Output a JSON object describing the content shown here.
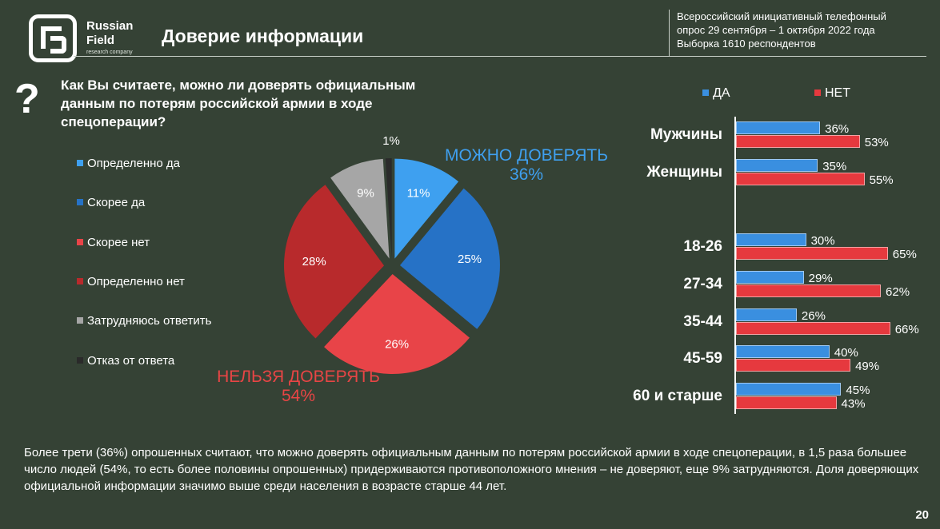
{
  "brand": {
    "line1": "Russian",
    "line2": "Field",
    "sub": "research company"
  },
  "header": {
    "title": "Доверие информации"
  },
  "survey": {
    "line1": "Всероссийский инициативный телефонный",
    "line2": "опрос 29 сентября – 1 октября 2022 года",
    "line3": "Выборка 1610 респондентов"
  },
  "question": {
    "mark": "?",
    "text": "Как Вы считаете, можно ли доверять официальным данным по потерям российской армии в ходе спецоперации?"
  },
  "callouts": {
    "yes_label": "МОЖНО ДОВЕРЯТЬ",
    "yes_value": "36%",
    "no_label": "НЕЛЬЗЯ ДОВЕРЯТЬ",
    "no_value": "54%"
  },
  "colors": {
    "definitely_yes": "#3ea0f0",
    "rather_yes": "#2672c6",
    "rather_no": "#e84448",
    "definitely_no": "#b82a2c",
    "hard_to_say": "#a6a6a6",
    "refusal": "#2a2a2a",
    "da": "#3a8fe0",
    "net": "#e6393e"
  },
  "chart_data": [
    {
      "type": "pie",
      "categories": [
        "Определенно да",
        "Скорее да",
        "Скорее нет",
        "Определенно нет",
        "Затрудняюсь ответить",
        "Отказ от ответа"
      ],
      "values": [
        11,
        25,
        26,
        28,
        9,
        1
      ],
      "labels": [
        "11%",
        "25%",
        "26%",
        "28%",
        "9%",
        "1%"
      ]
    },
    {
      "type": "bar",
      "orientation": "horizontal",
      "categories": [
        "Мужчины",
        "Женщины",
        "18-26",
        "27-34",
        "35-44",
        "45-59",
        "60 и старше"
      ],
      "series": [
        {
          "name": "ДА",
          "values": [
            36,
            35,
            30,
            29,
            26,
            40,
            45
          ],
          "labels": [
            "36%",
            "35%",
            "30%",
            "29%",
            "26%",
            "40%",
            "45%"
          ]
        },
        {
          "name": "НЕТ",
          "values": [
            53,
            55,
            65,
            62,
            66,
            49,
            43
          ],
          "labels": [
            "53%",
            "55%",
            "65%",
            "62%",
            "66%",
            "49%",
            "43%"
          ]
        }
      ]
    }
  ],
  "summary": "Более трети (36%) опрошенных считают, что можно доверять официальным данным по потерям российской армии в ходе спецоперации, в 1,5 раза большее число людей (54%, то есть более половины опрошенных) придерживаются противоположного мнения – не доверяют, еще 9% затрудняются. Доля доверяющих официальной информации значимо выше среди населения в возрасте старше 44 лет.",
  "page_number": "20"
}
